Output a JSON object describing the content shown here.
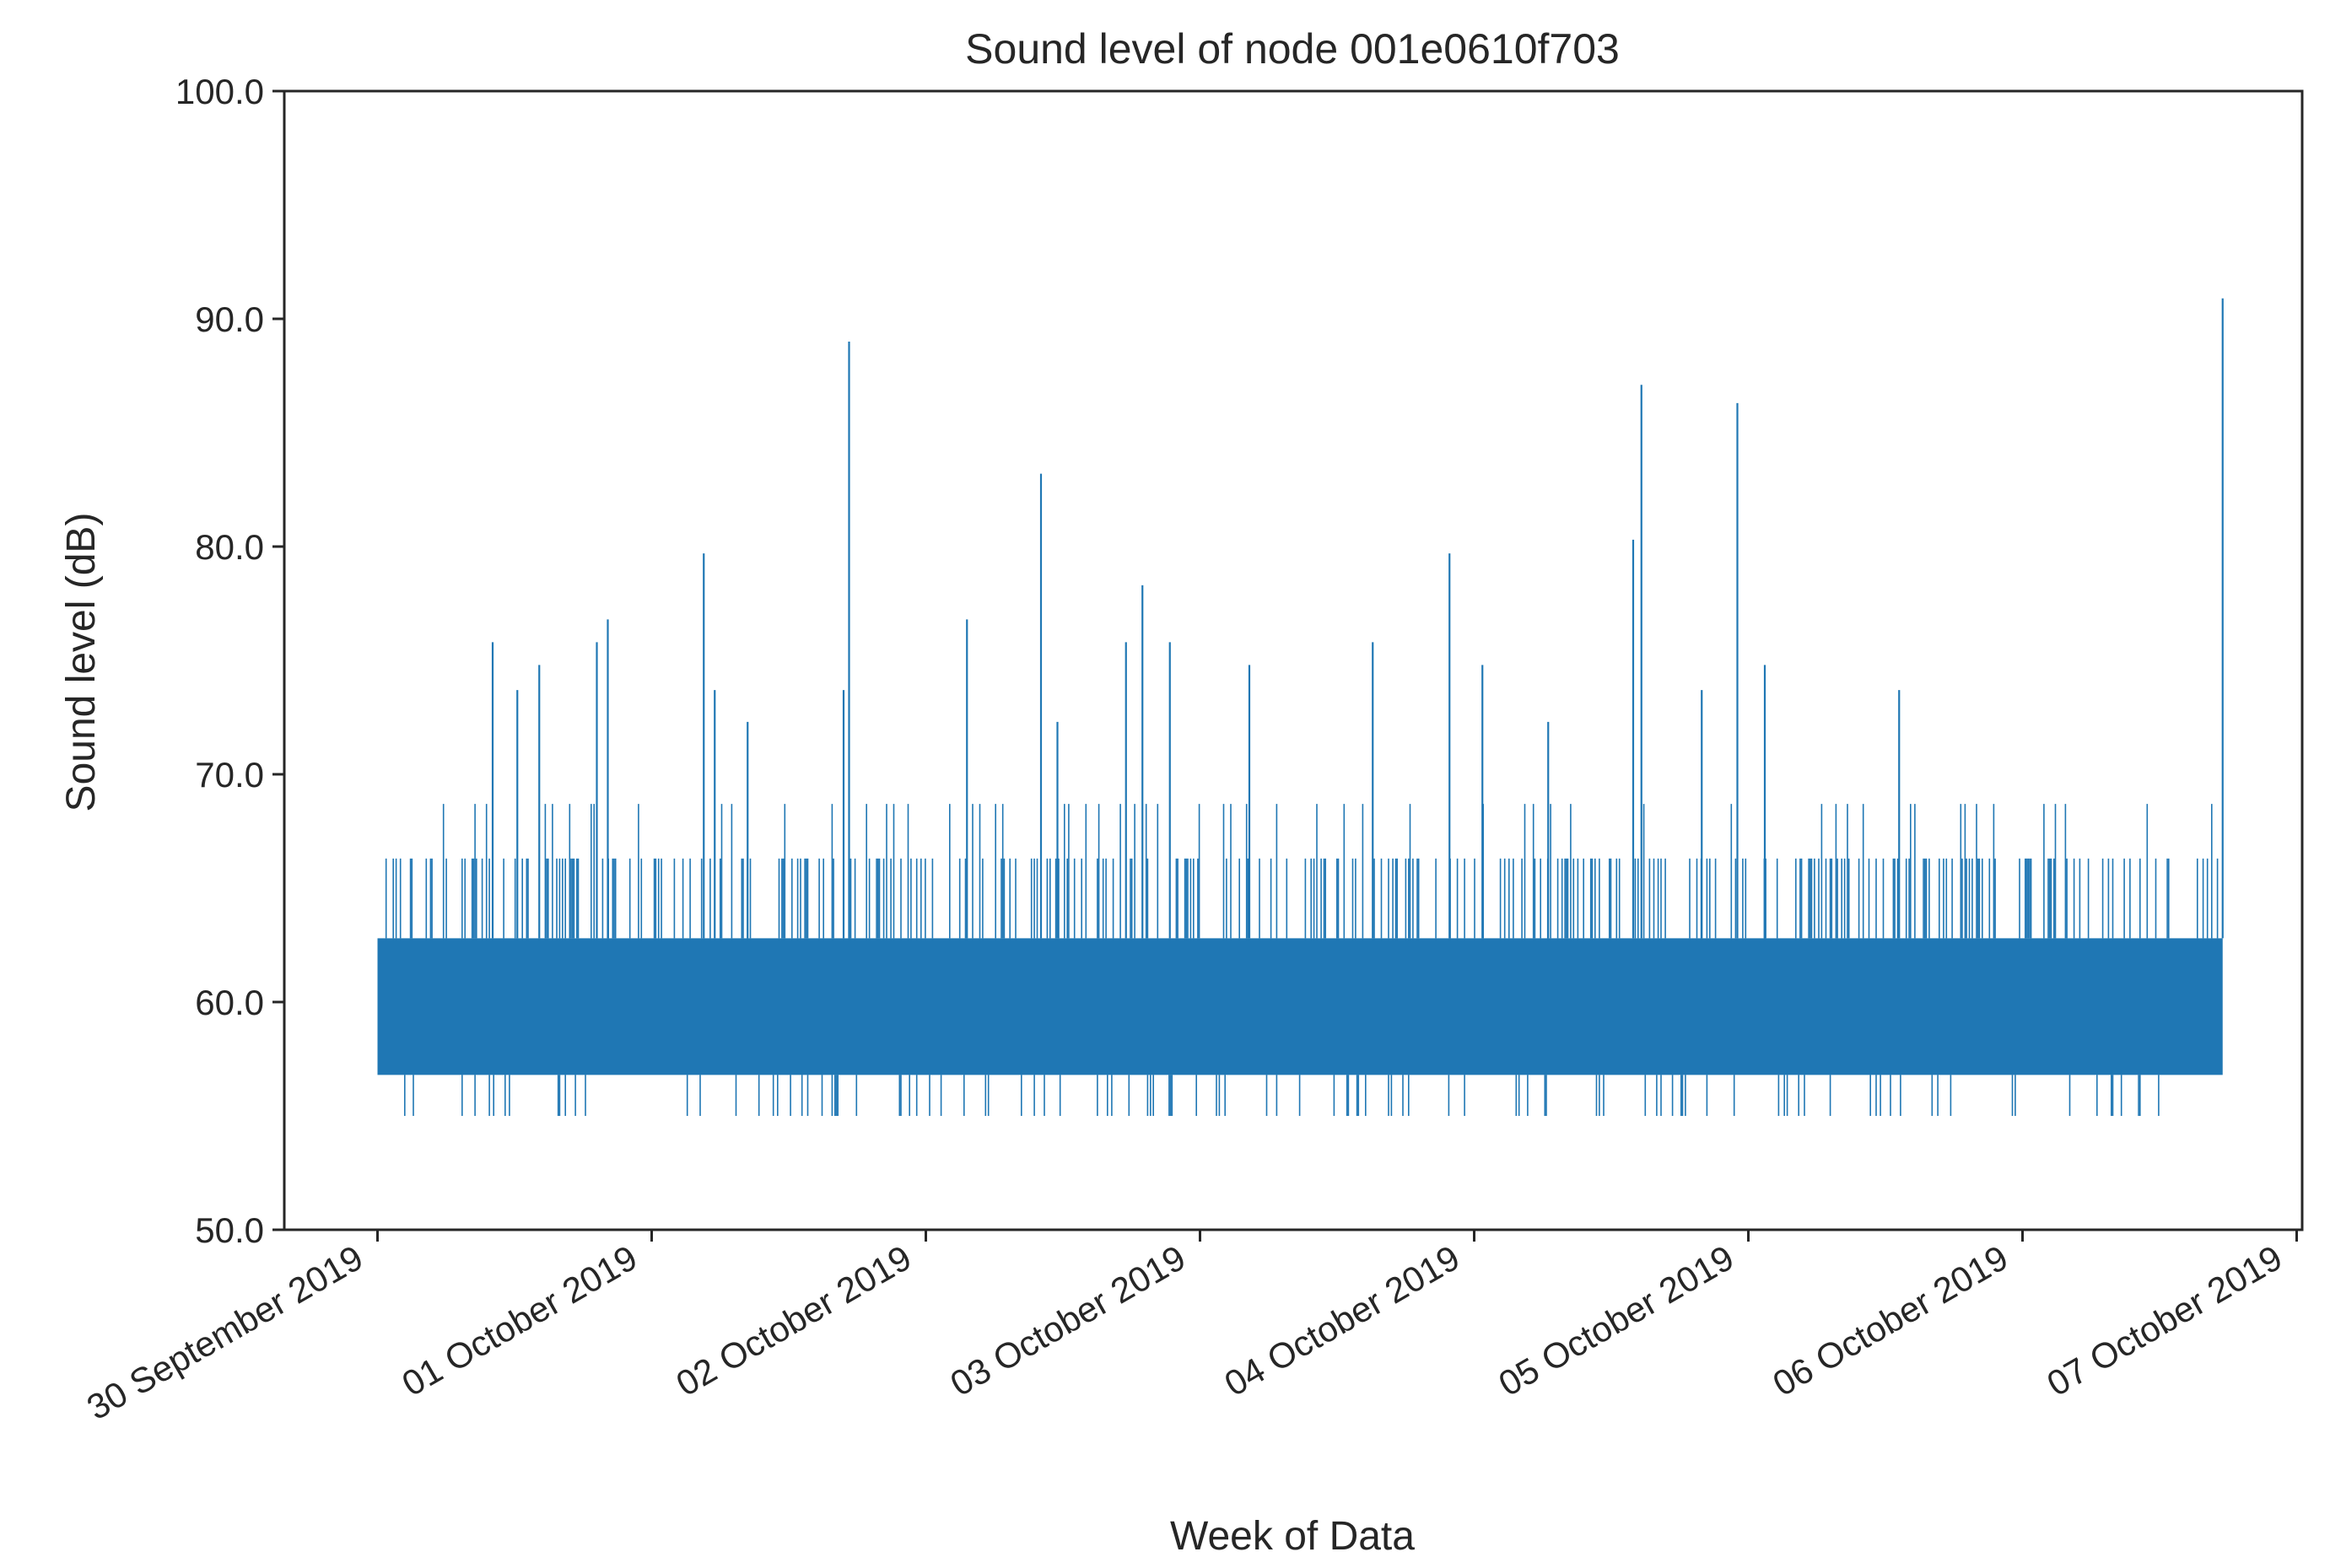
{
  "chart_data": {
    "type": "line",
    "title": "Sound level of node 001e0610f703",
    "xlabel": "Week of Data",
    "ylabel": "Sound level (dB)",
    "ylim": [
      50.0,
      100.0
    ],
    "xlim_days": [
      -0.34,
      7.02
    ],
    "y_ticks": [
      {
        "value": 50.0,
        "label": "50.0"
      },
      {
        "value": 60.0,
        "label": "60.0"
      },
      {
        "value": 70.0,
        "label": "70.0"
      },
      {
        "value": 80.0,
        "label": "80.0"
      },
      {
        "value": 90.0,
        "label": "90.0"
      },
      {
        "value": 100.0,
        "label": "100.0"
      }
    ],
    "x_ticks": [
      {
        "day": 0,
        "label": "30 September 2019"
      },
      {
        "day": 1,
        "label": "01 October 2019"
      },
      {
        "day": 2,
        "label": "02 October 2019"
      },
      {
        "day": 3,
        "label": "03 October 2019"
      },
      {
        "day": 4,
        "label": "04 October 2019"
      },
      {
        "day": 5,
        "label": "05 October 2019"
      },
      {
        "day": 6,
        "label": "06 October 2019"
      },
      {
        "day": 7,
        "label": "07 October 2019"
      }
    ],
    "series": [
      {
        "name": "001e0610f703",
        "color": "#1f77b4",
        "data_start_day": 0.0,
        "data_end_day": 6.73,
        "base_low": 56.8,
        "base_high": 62.8,
        "secondary_low": 55.0,
        "secondary_high": 66.3,
        "spikes": [
          {
            "day": 0.42,
            "value": 75.8
          },
          {
            "day": 0.51,
            "value": 73.7
          },
          {
            "day": 0.59,
            "value": 74.8
          },
          {
            "day": 0.8,
            "value": 75.8
          },
          {
            "day": 0.84,
            "value": 76.8
          },
          {
            "day": 1.19,
            "value": 79.7
          },
          {
            "day": 1.23,
            "value": 73.7
          },
          {
            "day": 1.35,
            "value": 72.3
          },
          {
            "day": 1.7,
            "value": 73.7
          },
          {
            "day": 1.72,
            "value": 89.0
          },
          {
            "day": 2.15,
            "value": 76.8
          },
          {
            "day": 2.42,
            "value": 83.2
          },
          {
            "day": 2.48,
            "value": 72.3
          },
          {
            "day": 2.73,
            "value": 75.8
          },
          {
            "day": 2.79,
            "value": 78.3
          },
          {
            "day": 2.89,
            "value": 75.8
          },
          {
            "day": 3.18,
            "value": 74.8
          },
          {
            "day": 3.63,
            "value": 75.8
          },
          {
            "day": 3.91,
            "value": 79.7
          },
          {
            "day": 4.03,
            "value": 74.8
          },
          {
            "day": 4.27,
            "value": 72.3
          },
          {
            "day": 4.58,
            "value": 80.3
          },
          {
            "day": 4.61,
            "value": 87.1
          },
          {
            "day": 4.83,
            "value": 73.7
          },
          {
            "day": 4.96,
            "value": 86.3
          },
          {
            "day": 5.06,
            "value": 74.8
          },
          {
            "day": 5.55,
            "value": 73.7
          },
          {
            "day": 6.73,
            "value": 90.9
          }
        ]
      }
    ]
  }
}
